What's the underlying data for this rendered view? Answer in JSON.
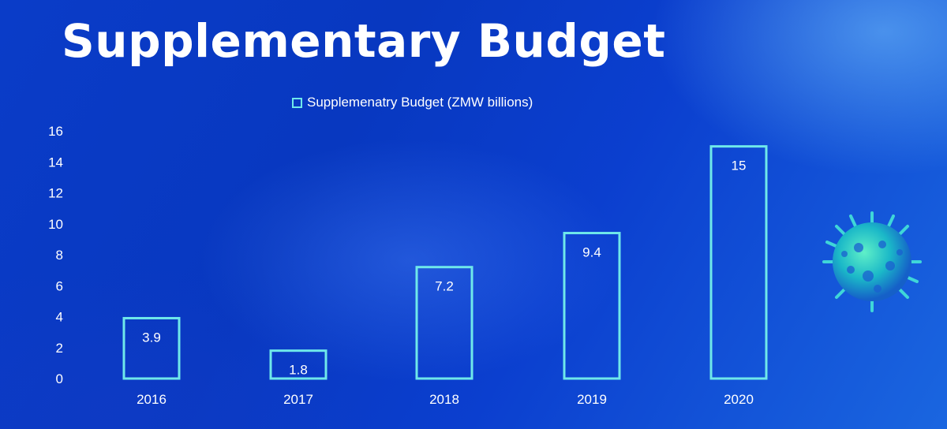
{
  "title": "Supplementary Budget",
  "icons": [
    "virus-icon"
  ],
  "colors": {
    "bar_outline": "#6fe8ea",
    "text": "#ffffff",
    "background": "#0a3cc8"
  },
  "chart_data": {
    "type": "bar",
    "categories": [
      "2016",
      "2017",
      "2018",
      "2019",
      "2020"
    ],
    "series": [
      {
        "name": "Supplemenatry Budget (ZMW billions)",
        "values": [
          3.9,
          1.8,
          7.2,
          9.4,
          15
        ]
      }
    ],
    "ylim": [
      0,
      16
    ],
    "yticks": [
      0,
      2,
      4,
      6,
      8,
      10,
      12,
      14,
      16
    ],
    "legend": "top",
    "grid": false,
    "data_labels": true
  }
}
